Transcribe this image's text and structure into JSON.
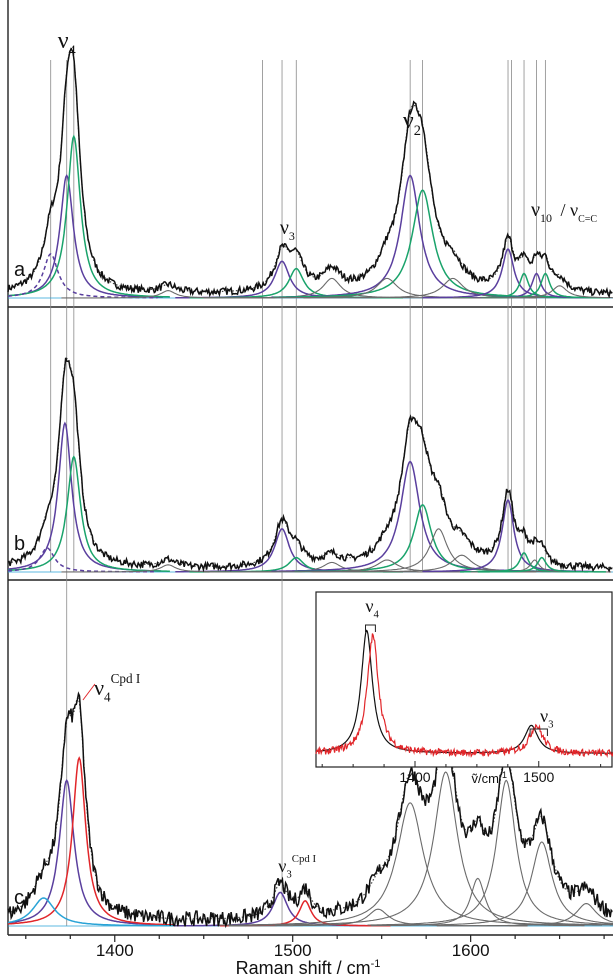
{
  "chart_data": {
    "type": "line",
    "xlabel": "Raman shift / cm",
    "xlabel_sup": "-1",
    "xlim": [
      1340,
      1680
    ],
    "x_ticks": [
      1400,
      1500,
      1600
    ],
    "colors": {
      "experimental": "#111111",
      "fit_sum": "#444444",
      "purple": "#5a3f9e",
      "green": "#1aa36b",
      "red": "#e1262a",
      "gray": "#6b6b6b",
      "cyan": "#29a3d6",
      "guide": "#8a8a8a"
    },
    "panels": [
      {
        "label": "a",
        "peaks": [
          {
            "name": "purple",
            "center": 1373,
            "height": 0.5,
            "width": 9
          },
          {
            "name": "green",
            "center": 1377,
            "height": 0.66,
            "width": 9
          },
          {
            "name": "dashed",
            "center": 1364,
            "height": 0.18,
            "width": 10
          },
          {
            "name": "purple",
            "center": 1494,
            "height": 0.15,
            "width": 10
          },
          {
            "name": "green",
            "center": 1502,
            "height": 0.12,
            "width": 10
          },
          {
            "name": "gray",
            "center": 1522,
            "height": 0.08,
            "width": 12
          },
          {
            "name": "gray",
            "center": 1430,
            "height": 0.03,
            "width": 10
          },
          {
            "name": "purple",
            "center": 1566,
            "height": 0.5,
            "width": 13
          },
          {
            "name": "green",
            "center": 1573,
            "height": 0.44,
            "width": 14
          },
          {
            "name": "gray",
            "center": 1553,
            "height": 0.08,
            "width": 14
          },
          {
            "name": "gray",
            "center": 1590,
            "height": 0.08,
            "width": 14
          },
          {
            "name": "purple",
            "center": 1621,
            "height": 0.2,
            "width": 8
          },
          {
            "name": "green",
            "center": 1630,
            "height": 0.1,
            "width": 6
          },
          {
            "name": "purple",
            "center": 1637,
            "height": 0.1,
            "width": 6
          },
          {
            "name": "green",
            "center": 1642,
            "height": 0.1,
            "width": 6
          },
          {
            "name": "gray",
            "center": 1650,
            "height": 0.05,
            "width": 10
          }
        ],
        "labels": [
          {
            "text": "ν",
            "sub": "4",
            "x": 1373
          },
          {
            "text": "ν",
            "sub": "3",
            "x": 1497
          },
          {
            "text": "ν",
            "sub": "2",
            "x": 1567
          },
          {
            "text": "ν",
            "sub": "10",
            "x": 1630,
            "extra": "/ ν",
            "extra_sub": "C=C"
          }
        ]
      },
      {
        "label": "b",
        "peaks": [
          {
            "name": "purple",
            "center": 1372,
            "height": 0.62,
            "width": 9
          },
          {
            "name": "green",
            "center": 1377,
            "height": 0.48,
            "width": 9
          },
          {
            "name": "dashed",
            "center": 1362,
            "height": 0.1,
            "width": 10
          },
          {
            "name": "purple",
            "center": 1494,
            "height": 0.18,
            "width": 10
          },
          {
            "name": "green",
            "center": 1502,
            "height": 0.06,
            "width": 10
          },
          {
            "name": "gray",
            "center": 1522,
            "height": 0.04,
            "width": 12
          },
          {
            "name": "gray",
            "center": 1430,
            "height": 0.03,
            "width": 10
          },
          {
            "name": "purple",
            "center": 1566,
            "height": 0.46,
            "width": 13
          },
          {
            "name": "green",
            "center": 1573,
            "height": 0.28,
            "width": 12
          },
          {
            "name": "gray",
            "center": 1582,
            "height": 0.18,
            "width": 12
          },
          {
            "name": "gray",
            "center": 1553,
            "height": 0.05,
            "width": 14
          },
          {
            "name": "gray",
            "center": 1595,
            "height": 0.07,
            "width": 14
          },
          {
            "name": "purple",
            "center": 1621,
            "height": 0.3,
            "width": 8
          },
          {
            "name": "green",
            "center": 1630,
            "height": 0.08,
            "width": 6
          },
          {
            "name": "gray",
            "center": 1636,
            "height": 0.05,
            "width": 6
          },
          {
            "name": "green",
            "center": 1640,
            "height": 0.06,
            "width": 6
          }
        ]
      },
      {
        "label": "c",
        "peaks": [
          {
            "name": "purple",
            "center": 1373,
            "height": 0.52,
            "width": 10
          },
          {
            "name": "red",
            "center": 1380,
            "height": 0.6,
            "width": 9
          },
          {
            "name": "cyan",
            "center": 1360,
            "height": 0.1,
            "width": 15
          },
          {
            "name": "purple",
            "center": 1493,
            "height": 0.12,
            "width": 10
          },
          {
            "name": "red",
            "center": 1507,
            "height": 0.09,
            "width": 8
          },
          {
            "name": "gray",
            "center": 1566,
            "height": 0.44,
            "width": 18
          },
          {
            "name": "gray",
            "center": 1586,
            "height": 0.55,
            "width": 16
          },
          {
            "name": "gray",
            "center": 1604,
            "height": 0.17,
            "width": 10
          },
          {
            "name": "gray",
            "center": 1620,
            "height": 0.52,
            "width": 13
          },
          {
            "name": "gray",
            "center": 1640,
            "height": 0.3,
            "width": 14
          },
          {
            "name": "gray",
            "center": 1665,
            "height": 0.08,
            "width": 14
          },
          {
            "name": "gray",
            "center": 1548,
            "height": 0.06,
            "width": 14
          }
        ],
        "labels": [
          {
            "text": "ν",
            "sub": "4",
            "sup": "Cpd I",
            "x": 1380
          },
          {
            "text": "ν",
            "sub": "3",
            "sup": "Cpd I",
            "x": 1507
          }
        ]
      }
    ],
    "guide_lines": [
      {
        "x": 1364,
        "panels": "a-b"
      },
      {
        "x": 1373,
        "panels": "a-c"
      },
      {
        "x": 1377,
        "panels": "a-b"
      },
      {
        "x": 1483,
        "panels": "a-b"
      },
      {
        "x": 1494,
        "panels": "a-c"
      },
      {
        "x": 1502,
        "panels": "a-b"
      },
      {
        "x": 1566,
        "panels": "a-b"
      },
      {
        "x": 1573,
        "panels": "a-b"
      },
      {
        "x": 1621,
        "panels": "a-b"
      },
      {
        "x": 1623,
        "panels": "a-b"
      },
      {
        "x": 1630,
        "panels": "a-b"
      },
      {
        "x": 1637,
        "panels": "a-b"
      },
      {
        "x": 1642,
        "panels": "a-b"
      }
    ],
    "inset": {
      "xlabel": "ṽ/cm",
      "xlabel_sup": "-1",
      "xlim": [
        1320,
        1560
      ],
      "x_ticks": [
        1400,
        1500
      ],
      "labels": [
        {
          "text": "ν",
          "sub": "4",
          "x": 1367
        },
        {
          "text": "ν",
          "sub": "3",
          "x": 1500
        }
      ],
      "series": [
        {
          "name": "black",
          "peaks": [
            {
              "center": 1361,
              "height": 0.88,
              "width": 11
            },
            {
              "center": 1494,
              "height": 0.2,
              "width": 13
            }
          ]
        },
        {
          "name": "red",
          "peaks": [
            {
              "center": 1366,
              "height": 0.84,
              "width": 11
            },
            {
              "center": 1498,
              "height": 0.2,
              "width": 13
            }
          ]
        }
      ]
    }
  }
}
